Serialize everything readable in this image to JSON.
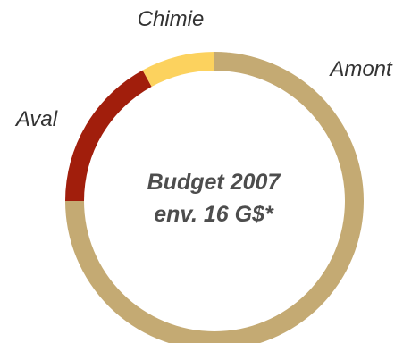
{
  "chart_data": {
    "type": "pie",
    "variant": "donut",
    "slices": [
      {
        "label": "Amont",
        "value": 75,
        "color": "#c4aa73"
      },
      {
        "label": "Aval",
        "value": 17,
        "color": "#a11e0c"
      },
      {
        "label": "Chimie",
        "value": 8,
        "color": "#fcd25e"
      }
    ],
    "center_title": "Budget 2007",
    "center_subtitle": "env. 16 G$*"
  }
}
